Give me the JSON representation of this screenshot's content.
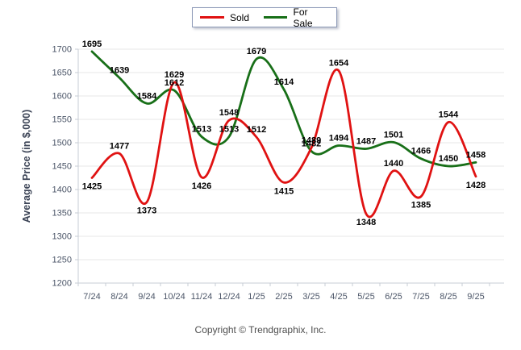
{
  "footer": {
    "copyright": "Copyright © Trendgraphix, Inc."
  },
  "chart_data": {
    "type": "line",
    "title": "",
    "xlabel": "",
    "ylabel": "Average Price (in $,000)",
    "ylim": [
      1200,
      1700
    ],
    "ytick_step": 50,
    "grid": true,
    "legend_position": "top-center",
    "smooth": true,
    "point_labels": true,
    "categories": [
      "7/24",
      "8/24",
      "9/24",
      "10/24",
      "11/24",
      "12/24",
      "1/25",
      "2/25",
      "3/25",
      "4/25",
      "5/25",
      "6/25",
      "7/25",
      "8/25",
      "9/25"
    ],
    "series": [
      {
        "name": "Sold",
        "color": "#e01212",
        "values": [
          1425,
          1477,
          1373,
          1629,
          1426,
          1548,
          1512,
          1415,
          1489,
          1654,
          1348,
          1440,
          1385,
          1544,
          1428
        ]
      },
      {
        "name": "For Sale",
        "color": "#186f18",
        "values": [
          1695,
          1639,
          1584,
          1612,
          1513,
          1513,
          1679,
          1614,
          1482,
          1494,
          1487,
          1501,
          1466,
          1450,
          1458
        ]
      }
    ],
    "colors": {
      "grid": "#e7e7e7",
      "axis": "#c7ccd6",
      "tick": "#c7ccd6",
      "axis_text": "#4c5668",
      "point_label": "#000000"
    }
  }
}
